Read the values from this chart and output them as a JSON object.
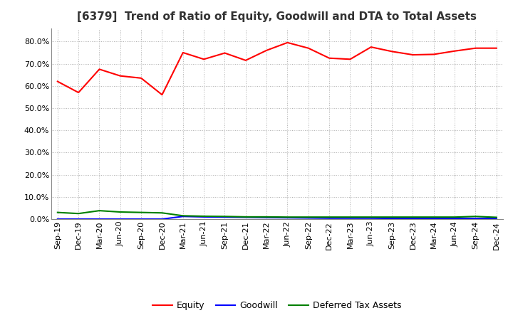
{
  "title": "[6379]  Trend of Ratio of Equity, Goodwill and DTA to Total Assets",
  "x_labels": [
    "Sep-19",
    "Dec-19",
    "Mar-20",
    "Jun-20",
    "Sep-20",
    "Dec-20",
    "Mar-21",
    "Jun-21",
    "Sep-21",
    "Dec-21",
    "Mar-22",
    "Jun-22",
    "Sep-22",
    "Dec-22",
    "Mar-23",
    "Jun-23",
    "Sep-23",
    "Dec-23",
    "Mar-24",
    "Jun-24",
    "Sep-24",
    "Dec-24"
  ],
  "equity": [
    0.62,
    0.57,
    0.675,
    0.645,
    0.635,
    0.56,
    0.75,
    0.72,
    0.748,
    0.715,
    0.76,
    0.795,
    0.77,
    0.725,
    0.72,
    0.775,
    0.755,
    0.74,
    0.742,
    0.757,
    0.77,
    0.77
  ],
  "goodwill": [
    0.0,
    0.0,
    0.0,
    0.0,
    0.0,
    0.0,
    0.012,
    0.01,
    0.009,
    0.008,
    0.007,
    0.006,
    0.005,
    0.004,
    0.004,
    0.004,
    0.003,
    0.003,
    0.003,
    0.003,
    0.003,
    0.003
  ],
  "dta": [
    0.03,
    0.025,
    0.038,
    0.032,
    0.03,
    0.028,
    0.015,
    0.013,
    0.012,
    0.01,
    0.01,
    0.009,
    0.009,
    0.009,
    0.009,
    0.009,
    0.009,
    0.009,
    0.009,
    0.009,
    0.012,
    0.008
  ],
  "equity_color": "#ff0000",
  "goodwill_color": "#0000ff",
  "dta_color": "#008000",
  "ylim": [
    0.0,
    0.86
  ],
  "yticks": [
    0.0,
    0.1,
    0.2,
    0.3,
    0.4,
    0.5,
    0.6,
    0.7,
    0.8
  ],
  "background_color": "#ffffff",
  "grid_color": "#b0b0b0",
  "title_fontsize": 11,
  "legend_fontsize": 9,
  "axis_fontsize": 8
}
